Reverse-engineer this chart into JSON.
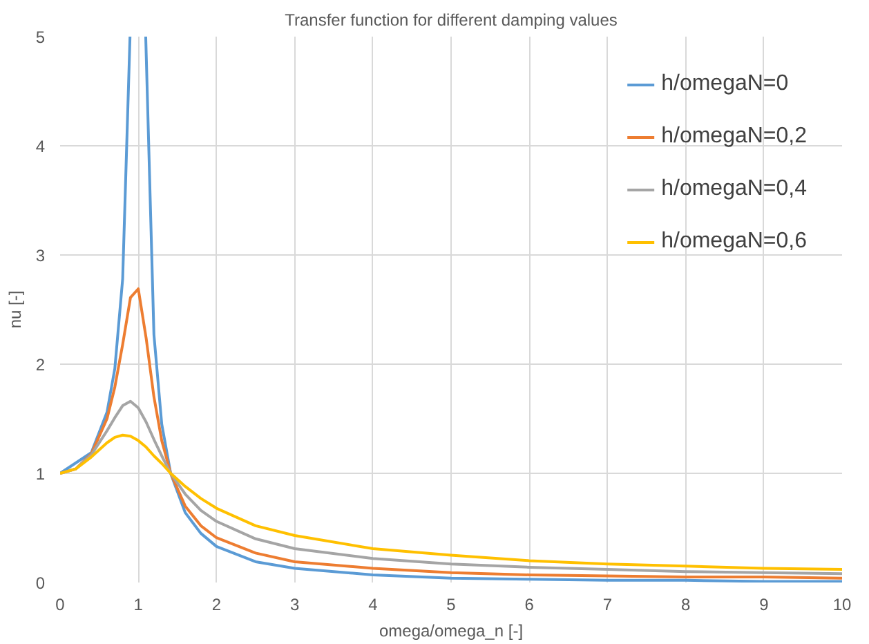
{
  "chart_data": {
    "type": "line",
    "title": "Transfer function for different damping values",
    "xlabel": "omega/omega_n [-]",
    "ylabel": "nu [-]",
    "xlim": [
      0,
      10
    ],
    "ylim": [
      0,
      5
    ],
    "xticks": [
      0,
      1,
      2,
      3,
      4,
      5,
      6,
      7,
      8,
      9,
      10
    ],
    "yticks": [
      0,
      1,
      2,
      3,
      4,
      5
    ],
    "grid": true,
    "legend": "top right",
    "marker": "none",
    "line_style": "solid",
    "x": [
      0,
      0.2,
      0.4,
      0.6,
      0.7,
      0.8,
      0.9,
      1,
      1.1,
      1.2,
      1.3,
      1.414,
      1.6,
      1.8,
      2,
      2.5,
      3,
      4,
      5,
      6,
      7,
      8,
      9,
      10
    ],
    "series": [
      {
        "name": "h/omegaN=0",
        "color": "#5b9bd5",
        "x": [
          0,
          0.4,
          0.6,
          0.7,
          0.8,
          0.894,
          1,
          1.095,
          1.2,
          1.3,
          1.414,
          1.6,
          1.8,
          2,
          2.5,
          3,
          4,
          5,
          6,
          7,
          8,
          9,
          10
        ],
        "values": [
          1,
          1.19,
          1.56,
          1.96,
          2.78,
          5,
          null,
          5,
          2.27,
          1.45,
          1,
          0.64,
          0.45,
          0.33,
          0.19,
          0.13,
          0.07,
          0.04,
          0.03,
          0.02,
          0.02,
          0.01,
          0.01
        ]
      },
      {
        "name": "h/omegaN=0,2",
        "color": "#ed7d31",
        "values": [
          1,
          1.04,
          1.18,
          1.5,
          1.79,
          2.18,
          2.61,
          2.69,
          2.24,
          1.7,
          1.3,
          1,
          0.7,
          0.52,
          0.41,
          0.27,
          0.19,
          0.13,
          0.09,
          0.07,
          0.06,
          0.05,
          0.05,
          0.04
        ]
      },
      {
        "name": "h/omegaN=0,4",
        "color": "#a5a5a5",
        "values": [
          1,
          1.04,
          1.17,
          1.39,
          1.51,
          1.62,
          1.66,
          1.6,
          1.47,
          1.31,
          1.16,
          1,
          0.81,
          0.66,
          0.56,
          0.4,
          0.31,
          0.22,
          0.17,
          0.14,
          0.12,
          0.1,
          0.09,
          0.08
        ]
      },
      {
        "name": "h/omegaN=0,6",
        "color": "#ffc000",
        "values": [
          1,
          1.04,
          1.15,
          1.28,
          1.33,
          1.35,
          1.34,
          1.3,
          1.24,
          1.16,
          1.09,
          1,
          0.88,
          0.77,
          0.68,
          0.52,
          0.43,
          0.31,
          0.25,
          0.2,
          0.17,
          0.15,
          0.13,
          0.12
        ]
      }
    ]
  }
}
